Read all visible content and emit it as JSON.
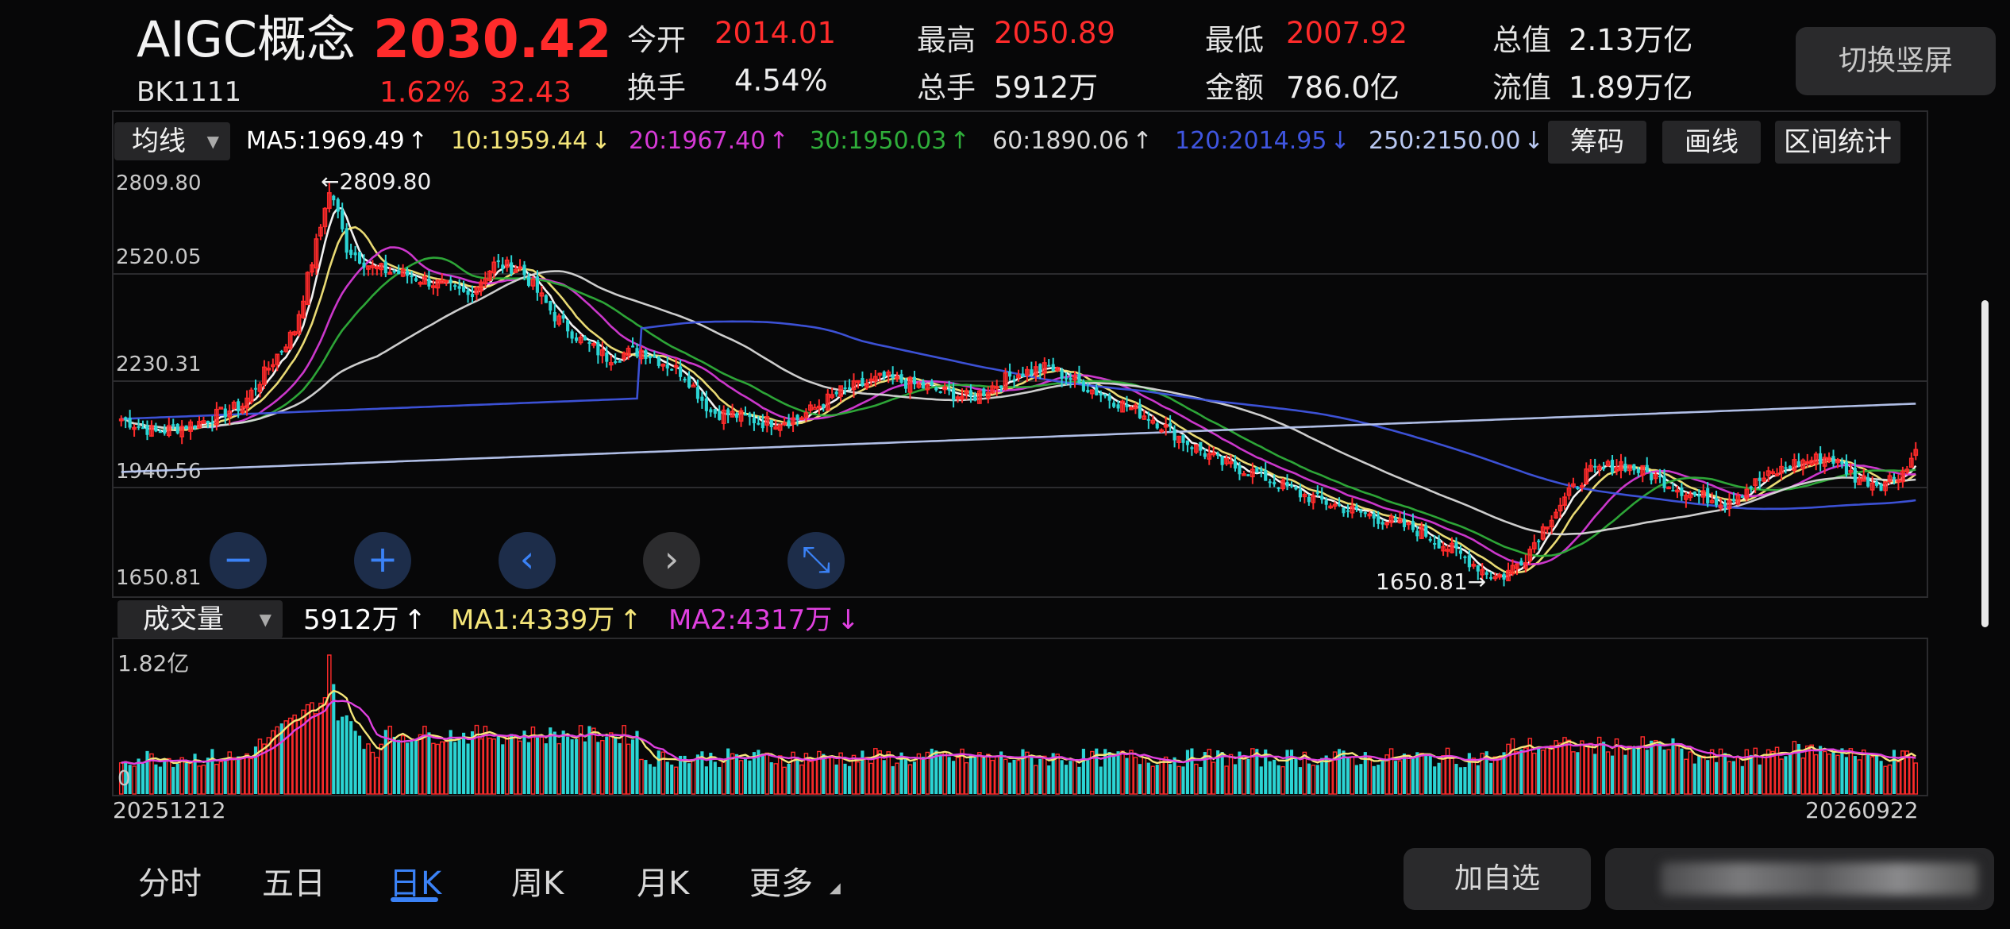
{
  "header": {
    "name": "AIGC概念",
    "price": "2030.42",
    "code": "BK1111",
    "change_pct": "1.62%",
    "change_abs": "32.43",
    "switch_button": "切换竖屏",
    "stats": [
      {
        "label": "今开",
        "value": "2014.01",
        "color": "red"
      },
      {
        "label": "最高",
        "value": "2050.89",
        "color": "red"
      },
      {
        "label": "最低",
        "value": "2007.92",
        "color": "red"
      },
      {
        "label": "总值",
        "value": "2.13万亿",
        "color": "white"
      },
      {
        "label": "换手",
        "value": "4.54%",
        "color": "white"
      },
      {
        "label": "总手",
        "value": "5912万",
        "color": "white"
      },
      {
        "label": "金额",
        "value": "786.0亿",
        "color": "white"
      },
      {
        "label": "流值",
        "value": "1.89万亿",
        "color": "white"
      }
    ]
  },
  "ma_bar": {
    "selector": "均线",
    "items": [
      {
        "text": "MA5:1969.49",
        "arrow": "↑",
        "color": "#ffffff"
      },
      {
        "text": "10:1959.44",
        "arrow": "↓",
        "color": "#f5e67a"
      },
      {
        "text": "20:1967.40",
        "arrow": "↑",
        "color": "#d63ad6"
      },
      {
        "text": "30:1950.03",
        "arrow": "↑",
        "color": "#2fae3a"
      },
      {
        "text": "60:1890.06",
        "arrow": "↑",
        "color": "#d8d8d8"
      },
      {
        "text": "120:2014.95",
        "arrow": "↓",
        "color": "#3f55e0"
      },
      {
        "text": "250:2150.00",
        "arrow": "↓",
        "color": "#b9c8f2"
      }
    ],
    "tools": [
      "筹码",
      "画线",
      "区间统计"
    ]
  },
  "price_axis": [
    "2809.80",
    "2520.05",
    "2230.31",
    "1940.56",
    "1650.81"
  ],
  "annotations": {
    "high": "2809.80",
    "low": "1650.81"
  },
  "volume_bar": {
    "selector": "成交量",
    "items": [
      {
        "text": "5912万",
        "arrow": "↑",
        "color": "#ffffff"
      },
      {
        "text": "MA1:4339万",
        "arrow": "↑",
        "color": "#f5e67a"
      },
      {
        "text": "MA2:4317万",
        "arrow": "↓",
        "color": "#e040e0"
      }
    ],
    "axis_top": "1.82亿",
    "axis_zero": "0"
  },
  "dates": {
    "start": "20251212",
    "end": "20260922"
  },
  "nav_icons": [
    "zoom-out-icon",
    "zoom-in-icon",
    "chevron-left-icon",
    "chevron-right-icon",
    "collapse-icon"
  ],
  "bottom_tabs": [
    "分时",
    "五日",
    "日K",
    "周K",
    "月K",
    "更多"
  ],
  "active_tab": "日K",
  "add_watchlist": "加自选",
  "colors": {
    "up": "#ff2b2b",
    "down": "#2bd4d4",
    "bg": "#070708",
    "active": "#3b82f6"
  },
  "chart_data": {
    "type": "candlestick",
    "ylim": [
      1650.81,
      2809.8
    ],
    "keypoints": [
      [
        0,
        2120
      ],
      [
        8,
        2080
      ],
      [
        18,
        2110
      ],
      [
        28,
        2160
      ],
      [
        40,
        2380
      ],
      [
        46,
        2680
      ],
      [
        48,
        2809.8
      ],
      [
        52,
        2620
      ],
      [
        58,
        2560
      ],
      [
        66,
        2540
      ],
      [
        74,
        2510
      ],
      [
        80,
        2480
      ],
      [
        86,
        2570
      ],
      [
        92,
        2560
      ],
      [
        100,
        2420
      ],
      [
        106,
        2350
      ],
      [
        112,
        2300
      ],
      [
        120,
        2320
      ],
      [
        130,
        2250
      ],
      [
        136,
        2140
      ],
      [
        142,
        2130
      ],
      [
        148,
        2110
      ],
      [
        156,
        2120
      ],
      [
        166,
        2200
      ],
      [
        176,
        2240
      ],
      [
        186,
        2210
      ],
      [
        196,
        2180
      ],
      [
        206,
        2250
      ],
      [
        214,
        2270
      ],
      [
        220,
        2230
      ],
      [
        228,
        2180
      ],
      [
        238,
        2120
      ],
      [
        246,
        2050
      ],
      [
        254,
        1990
      ],
      [
        262,
        1960
      ],
      [
        272,
        1900
      ],
      [
        282,
        1860
      ],
      [
        290,
        1830
      ],
      [
        300,
        1790
      ],
      [
        308,
        1730
      ],
      [
        314,
        1680
      ],
      [
        318,
        1650.81
      ],
      [
        324,
        1720
      ],
      [
        330,
        1840
      ],
      [
        338,
        1960
      ],
      [
        346,
        1990
      ],
      [
        354,
        1950
      ],
      [
        362,
        1900
      ],
      [
        370,
        1880
      ],
      [
        378,
        1940
      ],
      [
        386,
        1990
      ],
      [
        394,
        2010
      ],
      [
        400,
        1950
      ],
      [
        406,
        1930
      ],
      [
        412,
        1975
      ],
      [
        414,
        2030.42
      ]
    ],
    "volume_ylim": [
      0,
      1.82
    ],
    "volume_unit": "亿"
  }
}
